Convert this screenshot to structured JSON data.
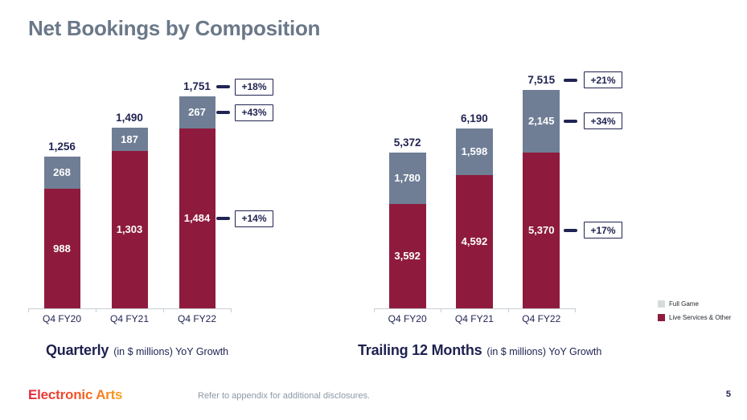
{
  "slide": {
    "title": "Net Bookings by Composition",
    "footer_note": "Refer to appendix for additional disclosures.",
    "logo_text": "Electronic Arts",
    "page_number": "5"
  },
  "colors": {
    "title": "#6A7889",
    "navy_text": "#212452",
    "live_services": "#8E1B3E",
    "full_game_bar": "#6F7E95",
    "full_game_legend_swatch": "#D8DBDD",
    "axis": "#C9CED4",
    "footer_note": "#8C99A6",
    "logo_gradient": [
      "#E3273D",
      "#F05A24",
      "#F9A11B"
    ]
  },
  "legend": {
    "items": [
      {
        "label": "Full Game",
        "color": "#D8DBDD"
      },
      {
        "label": "Live Services & Other",
        "color": "#8E1B3E"
      }
    ]
  },
  "chart_data": [
    {
      "type": "bar",
      "stacked": true,
      "title": "Quarterly",
      "subtitle": "(in $ millions) YoY Growth",
      "categories": [
        "Q4 FY20",
        "Q4 FY21",
        "Q4 FY22"
      ],
      "series": [
        {
          "name": "Live Services & Other",
          "color": "#8E1B3E",
          "values": [
            988,
            1303,
            1484
          ],
          "labels": [
            "988",
            "1,303",
            "1,484"
          ]
        },
        {
          "name": "Full Game",
          "color": "#6F7E95",
          "values": [
            268,
            187,
            267
          ],
          "labels": [
            "268",
            "187",
            "267"
          ]
        }
      ],
      "totals": [
        1256,
        1490,
        1751
      ],
      "total_labels": [
        "1,256",
        "1,490",
        "1,751"
      ],
      "growth_callouts": [
        {
          "target": "total",
          "label": "+18%"
        },
        {
          "target": "Full Game",
          "label": "+43%"
        },
        {
          "target": "Live Services & Other",
          "label": "+14%"
        }
      ],
      "grid": false,
      "value_axis_visible": false
    },
    {
      "type": "bar",
      "stacked": true,
      "title": "Trailing 12 Months",
      "subtitle": "(in $ millions) YoY Growth",
      "categories": [
        "Q4 FY20",
        "Q4 FY21",
        "Q4 FY22"
      ],
      "series": [
        {
          "name": "Live Services & Other",
          "color": "#8E1B3E",
          "values": [
            3592,
            4592,
            5370
          ],
          "labels": [
            "3,592",
            "4,592",
            "5,370"
          ]
        },
        {
          "name": "Full Game",
          "color": "#6F7E95",
          "values": [
            1780,
            1598,
            2145
          ],
          "labels": [
            "1,780",
            "1,598",
            "2,145"
          ]
        }
      ],
      "totals": [
        5372,
        6190,
        7515
      ],
      "total_labels": [
        "5,372",
        "6,190",
        "7,515"
      ],
      "growth_callouts": [
        {
          "target": "total",
          "label": "+21%"
        },
        {
          "target": "Full Game",
          "label": "+34%"
        },
        {
          "target": "Live Services & Other",
          "label": "+17%"
        }
      ],
      "grid": false,
      "value_axis_visible": false
    }
  ]
}
